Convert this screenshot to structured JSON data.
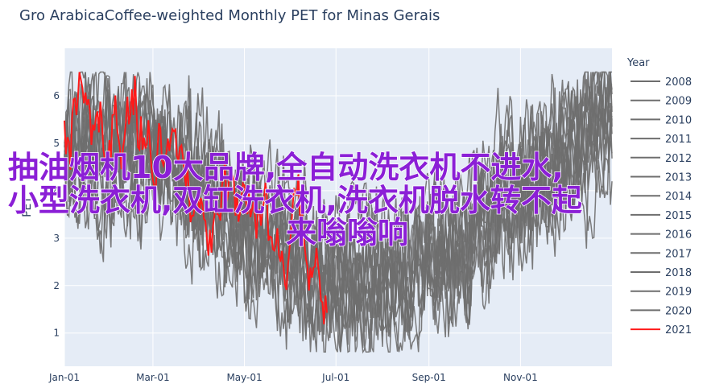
{
  "chart_data": {
    "type": "line",
    "title": "Gro ArabicaCoffee-weighted Monthly PET for Minas Gerais",
    "xlabel": "",
    "ylabel": "PET",
    "x_ticks": [
      "Jan-01",
      "Mar-01",
      "May-01",
      "Jul-01",
      "Sep-01",
      "Nov-01"
    ],
    "y_ticks": [
      "1",
      "2",
      "3",
      "4",
      "5",
      "6"
    ],
    "ylim": [
      0.3,
      7.0
    ],
    "x_range_days": [
      0,
      365
    ],
    "grid": true,
    "legend": {
      "title": "Year",
      "placement": "right"
    },
    "highlight_color": "#ff1a1a",
    "base_color": "#6e6e6e",
    "series": [
      {
        "name": "2008",
        "color": "#6e6e6e",
        "seed": 11
      },
      {
        "name": "2009",
        "color": "#6e6e6e",
        "seed": 23
      },
      {
        "name": "2010",
        "color": "#6e6e6e",
        "seed": 37
      },
      {
        "name": "2011",
        "color": "#6e6e6e",
        "seed": 41
      },
      {
        "name": "2012",
        "color": "#6e6e6e",
        "seed": 53
      },
      {
        "name": "2013",
        "color": "#6e6e6e",
        "seed": 67
      },
      {
        "name": "2014",
        "color": "#6e6e6e",
        "seed": 71
      },
      {
        "name": "2015",
        "color": "#6e6e6e",
        "seed": 83
      },
      {
        "name": "2016",
        "color": "#6e6e6e",
        "seed": 97
      },
      {
        "name": "2017",
        "color": "#6e6e6e",
        "seed": 101
      },
      {
        "name": "2018",
        "color": "#6e6e6e",
        "seed": 113
      },
      {
        "name": "2019",
        "color": "#6e6e6e",
        "seed": 127
      },
      {
        "name": "2020",
        "color": "#6e6e6e",
        "seed": 131
      },
      {
        "name": "2021",
        "color": "#ff1a1a",
        "seed": 149,
        "partial_until_day": 175
      }
    ]
  },
  "overlay_text": {
    "line1": "抽油烟机10大品牌,全自动洗衣机不进水,",
    "line2": "小型洗衣机,双缸洗衣机,洗衣机脱水转不起",
    "line3": "来嗡嗡响"
  }
}
